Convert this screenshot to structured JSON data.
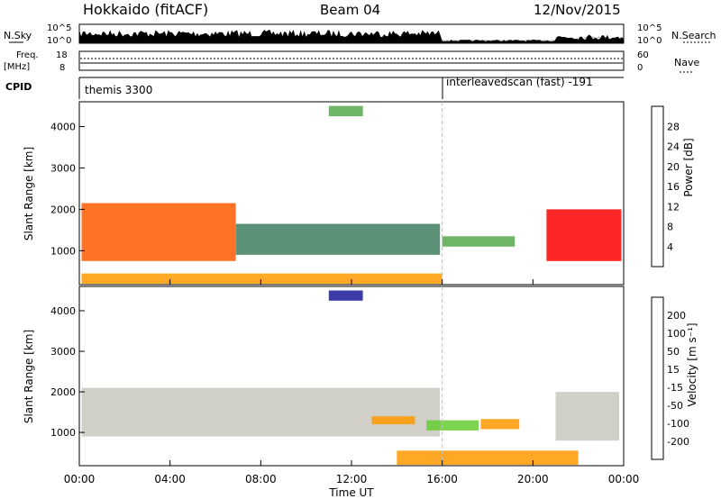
{
  "header": {
    "station": "Hokkaido (fitACF)",
    "beam": "Beam 04",
    "date": "12/Nov/2015"
  },
  "noise_panel": {
    "left_label": "N.Sky",
    "right_label": "N.Search",
    "ticks": [
      "10^5",
      "10^0"
    ]
  },
  "freq_panel": {
    "left_label_top": "Freq.",
    "left_label_unit": "[MHz]",
    "left_ticks": [
      "18",
      "8"
    ],
    "right_label": "Nave",
    "right_ticks": [
      "60",
      "0"
    ]
  },
  "cpid_panel": {
    "label": "CPID",
    "segments": [
      {
        "name": "themis 3300",
        "start_h": 0,
        "end_h": 16
      },
      {
        "name": "interleavedscan (fast) -191",
        "start_h": 16,
        "end_h": 24
      }
    ]
  },
  "time_axis": {
    "label": "Time UT",
    "ticks": [
      "00:00",
      "04:00",
      "08:00",
      "12:00",
      "16:00",
      "20:00",
      "00:00"
    ]
  },
  "colors": {
    "power": [
      "#0000ff",
      "#1c4fa8",
      "#3f7f5f",
      "#55a84a",
      "#e0c020",
      "#ff9a00",
      "#ff5a00",
      "#ff0000"
    ],
    "velocity": [
      "#ff0000",
      "#ff4400",
      "#ff9900",
      "#ffcc44",
      "#c8c8c0",
      "#66cc33",
      "#338833",
      "#2255aa",
      "#1a1a99"
    ],
    "noise_trace": "#000000",
    "dashed_line": "#bbbbbb"
  },
  "chart_data": [
    {
      "type": "heatmap",
      "ylabel": "Slant Range [km]",
      "xlim": [
        0,
        24
      ],
      "ylim": [
        180,
        4600
      ],
      "yticks": [
        "1000",
        "2000",
        "3000",
        "4000"
      ],
      "colorbar": {
        "label": "Power [dB]",
        "ticks": [
          "4",
          "8",
          "12",
          "16",
          "20",
          "24",
          "28"
        ]
      },
      "regions": [
        {
          "t0": 0.1,
          "t1": 6.9,
          "r0": 750,
          "r1": 2150,
          "level": 6
        },
        {
          "t0": 6.9,
          "t1": 15.9,
          "r0": 900,
          "r1": 1650,
          "level": 2
        },
        {
          "t0": 16.0,
          "t1": 19.2,
          "r0": 1100,
          "r1": 1350,
          "level": 3
        },
        {
          "t0": 20.6,
          "t1": 23.9,
          "r0": 750,
          "r1": 2000,
          "level": 7
        },
        {
          "t0": 11.0,
          "t1": 12.5,
          "r0": 4250,
          "r1": 4500,
          "level": 3
        },
        {
          "t0": 0.1,
          "t1": 16.0,
          "r0": 200,
          "r1": 450,
          "level": 5
        }
      ]
    },
    {
      "type": "heatmap",
      "ylabel": "Slant Range [km]",
      "xlim": [
        0,
        24
      ],
      "ylim": [
        180,
        4600
      ],
      "yticks": [
        "1000",
        "2000",
        "3000",
        "4000"
      ],
      "colorbar": {
        "label": "Velocity [m s⁻¹]",
        "ticks": [
          "200",
          "100",
          "50",
          "15",
          "-15",
          "-50",
          "-100",
          "-200"
        ]
      },
      "regions": [
        {
          "t0": 0.1,
          "t1": 15.9,
          "r0": 900,
          "r1": 2100,
          "level": 4
        },
        {
          "t0": 12.9,
          "t1": 14.8,
          "r0": 1200,
          "r1": 1400,
          "level": 2
        },
        {
          "t0": 15.3,
          "t1": 17.6,
          "r0": 1050,
          "r1": 1300,
          "level": 5
        },
        {
          "t0": 17.7,
          "t1": 19.4,
          "r0": 1080,
          "r1": 1330,
          "level": 2
        },
        {
          "t0": 21.0,
          "t1": 23.8,
          "r0": 800,
          "r1": 2000,
          "level": 4
        },
        {
          "t0": 11.0,
          "t1": 12.5,
          "r0": 4250,
          "r1": 4500,
          "level": 8
        },
        {
          "t0": 14.0,
          "t1": 22.0,
          "r0": 200,
          "r1": 550,
          "level": 2
        }
      ]
    }
  ]
}
